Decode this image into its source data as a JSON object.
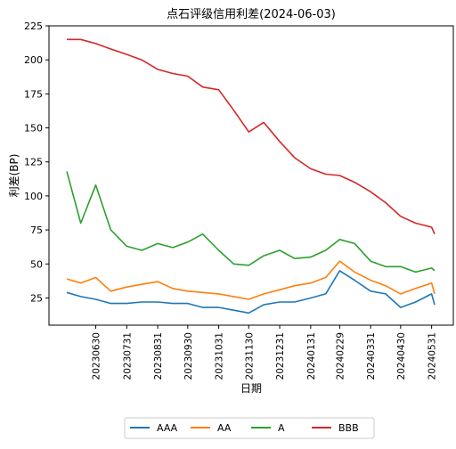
{
  "chart_data": {
    "type": "line",
    "title": "点石评级信用利差(2024-06-03)",
    "xlabel": "日期",
    "ylabel": "利差(BP)",
    "ylim": [
      5,
      225
    ],
    "yticks": [
      25,
      50,
      75,
      100,
      125,
      150,
      175,
      200,
      225
    ],
    "x": [
      "20230601",
      "20230615",
      "20230630",
      "20230715",
      "20230731",
      "20230815",
      "20230831",
      "20230915",
      "20230930",
      "20231015",
      "20231031",
      "20231115",
      "20231130",
      "20231215",
      "20231231",
      "20240115",
      "20240131",
      "20240215",
      "20240229",
      "20240315",
      "20240331",
      "20240415",
      "20240430",
      "20240515",
      "20240531",
      "20240603"
    ],
    "xticks": [
      "20230630",
      "20230731",
      "20230831",
      "20230930",
      "20231031",
      "20231130",
      "20231231",
      "20240131",
      "20240229",
      "20240331",
      "20240430",
      "20240531"
    ],
    "grid": false,
    "legend_position": "bottom",
    "series": [
      {
        "name": "AAA",
        "color": "#1f77b4",
        "values": [
          29,
          26,
          24,
          21,
          21,
          22,
          22,
          21,
          21,
          18,
          18,
          16,
          14,
          20,
          22,
          22,
          25,
          28,
          45,
          38,
          30,
          28,
          18,
          22,
          28,
          20
        ]
      },
      {
        "name": "AA",
        "color": "#ff7f0e",
        "values": [
          39,
          36,
          40,
          30,
          33,
          35,
          37,
          32,
          30,
          29,
          28,
          26,
          24,
          28,
          31,
          34,
          36,
          40,
          52,
          44,
          38,
          34,
          28,
          32,
          36,
          28
        ]
      },
      {
        "name": "A",
        "color": "#2ca02c",
        "values": [
          118,
          80,
          108,
          75,
          63,
          60,
          65,
          62,
          66,
          72,
          60,
          50,
          49,
          56,
          60,
          54,
          55,
          60,
          68,
          65,
          52,
          48,
          48,
          44,
          47,
          45
        ]
      },
      {
        "name": "BBB",
        "color": "#d62728",
        "values": [
          215,
          215,
          212,
          208,
          204,
          200,
          193,
          190,
          188,
          180,
          178,
          163,
          147,
          154,
          140,
          128,
          120,
          116,
          115,
          110,
          103,
          95,
          85,
          80,
          77,
          72
        ]
      }
    ]
  }
}
